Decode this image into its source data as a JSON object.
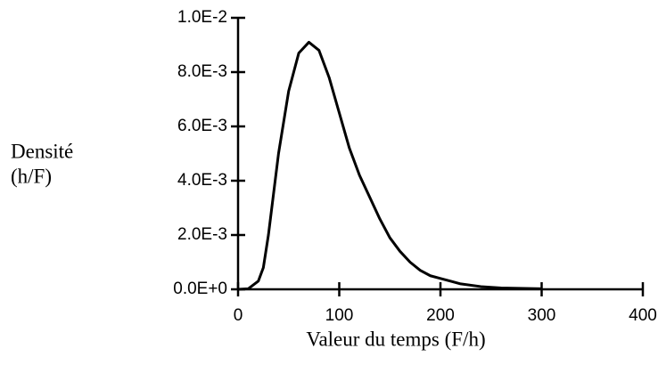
{
  "chart_data": {
    "type": "line",
    "xlabel": "Valeur du temps (F/h)",
    "ylabel": [
      "Densité",
      "(h/F)"
    ],
    "x": [
      0,
      10,
      20,
      25,
      30,
      40,
      50,
      60,
      70,
      80,
      90,
      100,
      110,
      120,
      130,
      140,
      150,
      160,
      170,
      180,
      190,
      200,
      220,
      240,
      260,
      300
    ],
    "values": [
      0,
      2e-05,
      0.0003,
      0.0008,
      0.002,
      0.005,
      0.0073,
      0.0087,
      0.0091,
      0.0088,
      0.0078,
      0.0065,
      0.0052,
      0.0042,
      0.0034,
      0.0026,
      0.0019,
      0.0014,
      0.001,
      0.0007,
      0.0005,
      0.0004,
      0.0002,
      0.0001,
      5e-05,
      2e-05
    ],
    "color": "#000000",
    "xlim": [
      0,
      400
    ],
    "xticks": [
      0,
      100,
      200,
      300,
      400
    ],
    "ylim": [
      0,
      0.01
    ],
    "yticks": [
      {
        "value": 0,
        "label": "0.0E+0"
      },
      {
        "value": 0.002,
        "label": "2.0E-3"
      },
      {
        "value": 0.004,
        "label": "4.0E-3"
      },
      {
        "value": 0.006,
        "label": "6.0E-3"
      },
      {
        "value": 0.008,
        "label": "8.0E-3"
      },
      {
        "value": 0.01,
        "label": "1.0E-2"
      }
    ]
  }
}
